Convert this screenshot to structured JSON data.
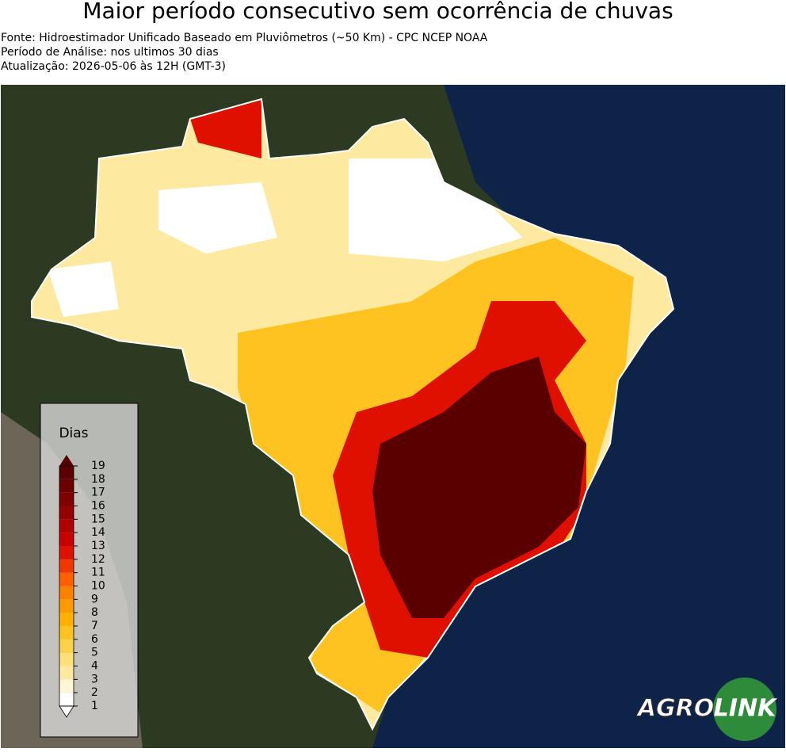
{
  "header": {
    "title": "Maior período consecutivo sem ocorrência de chuvas",
    "lines": [
      "Fonte: Hidroestimador Unificado Baseado em Pluviômetros (~50 Km) - CPC NCEP NOAA",
      "Período de Análise: nos ultimos 30 dias",
      "Atualização: 2026-05-06 às 12H (GMT-3)"
    ]
  },
  "legend": {
    "title": "Dias",
    "ticks": [
      1,
      2,
      3,
      4,
      5,
      6,
      7,
      8,
      9,
      10,
      11,
      12,
      13,
      14,
      15,
      16,
      17,
      18,
      19
    ],
    "colors": [
      "#ffffff",
      "#fff6d5",
      "#fdeaa0",
      "#fde07a",
      "#fdd24a",
      "#fec320",
      "#ffb000",
      "#ff9a00",
      "#ff8000",
      "#ff5f00",
      "#f03800",
      "#e01000",
      "#c80000",
      "#b00000",
      "#960000",
      "#800000",
      "#6c0000",
      "#5a0000"
    ]
  },
  "logo": {
    "left": "AGRO",
    "right": "LINK"
  }
}
